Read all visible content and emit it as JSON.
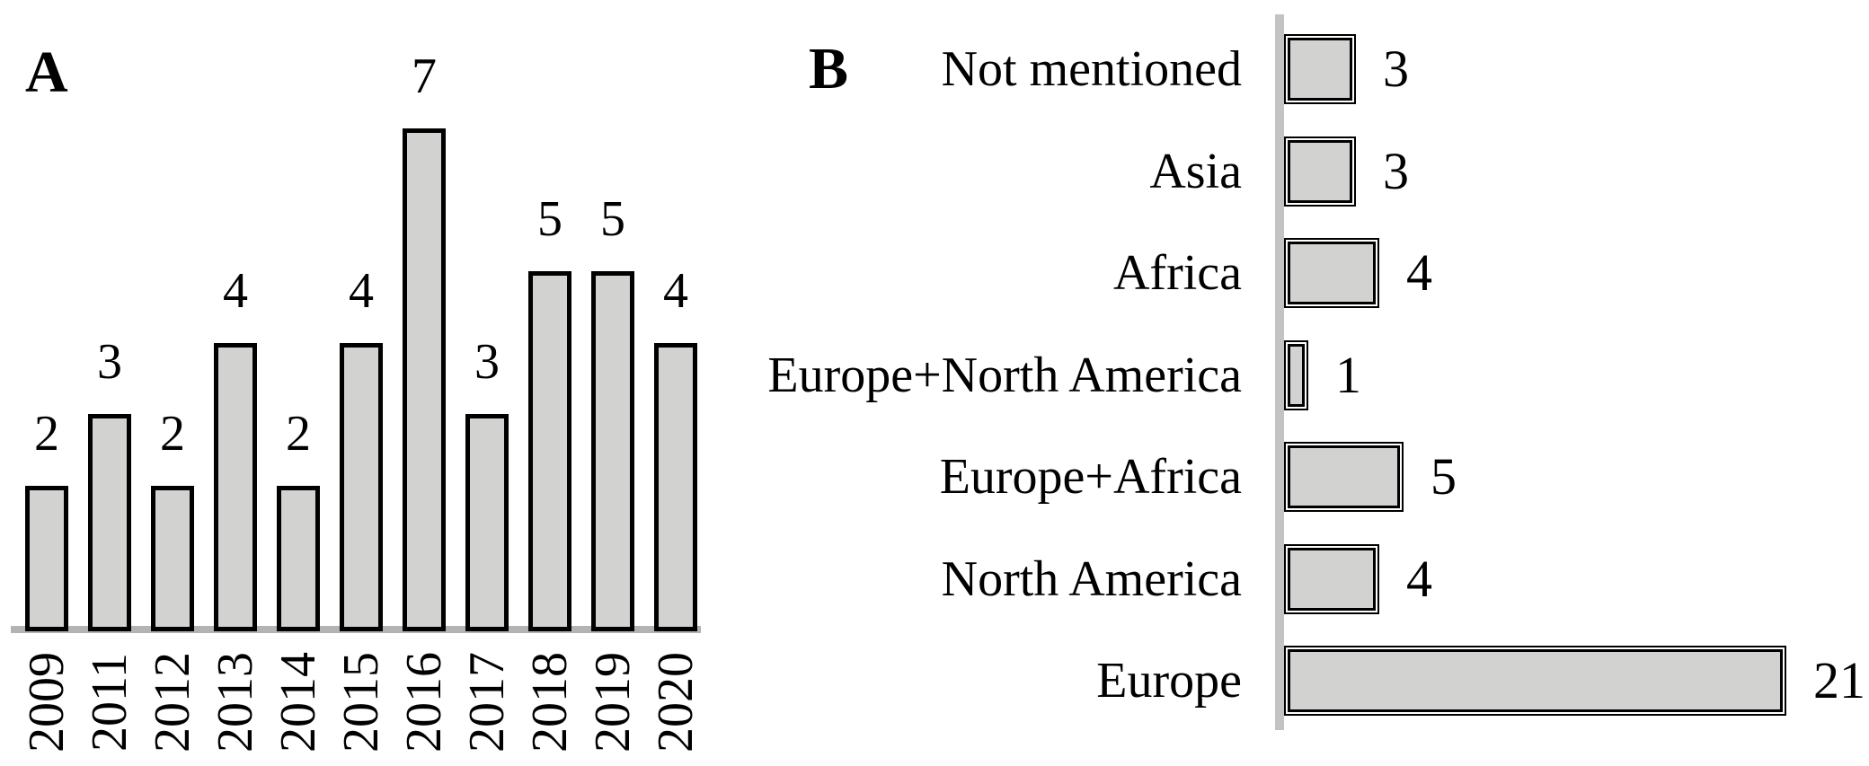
{
  "figure": {
    "panel_a_letter": "A",
    "panel_b_letter": "B"
  },
  "chart_data": [
    {
      "type": "bar",
      "panel": "A",
      "orientation": "vertical",
      "title": "",
      "xlabel": "",
      "ylabel": "",
      "ylim": [
        0,
        7
      ],
      "grid": false,
      "legend": false,
      "data_labels": true,
      "categories": [
        "2009",
        "2011",
        "2012",
        "2013",
        "2014",
        "2015",
        "2016",
        "2017",
        "2018",
        "2019",
        "2020"
      ],
      "values": [
        2,
        3,
        2,
        4,
        2,
        4,
        7,
        3,
        5,
        5,
        4
      ],
      "bar_fill": "#d2d2d0",
      "bar_border": "#000000",
      "baseline_color": "#b3b3b3"
    },
    {
      "type": "bar",
      "panel": "B",
      "orientation": "horizontal",
      "title": "",
      "xlabel": "",
      "ylabel": "",
      "xlim": [
        0,
        21
      ],
      "grid": false,
      "legend": false,
      "data_labels": true,
      "categories": [
        "Not mentioned",
        "Asia",
        "Africa",
        "Europe+North America",
        "Europe+Africa",
        "North America",
        "Europe"
      ],
      "values": [
        3,
        3,
        4,
        1,
        5,
        4,
        21
      ],
      "bar_fill": "#d2d2d0",
      "bar_border": "#000000",
      "axis_color": "#c3c3c3"
    }
  ]
}
